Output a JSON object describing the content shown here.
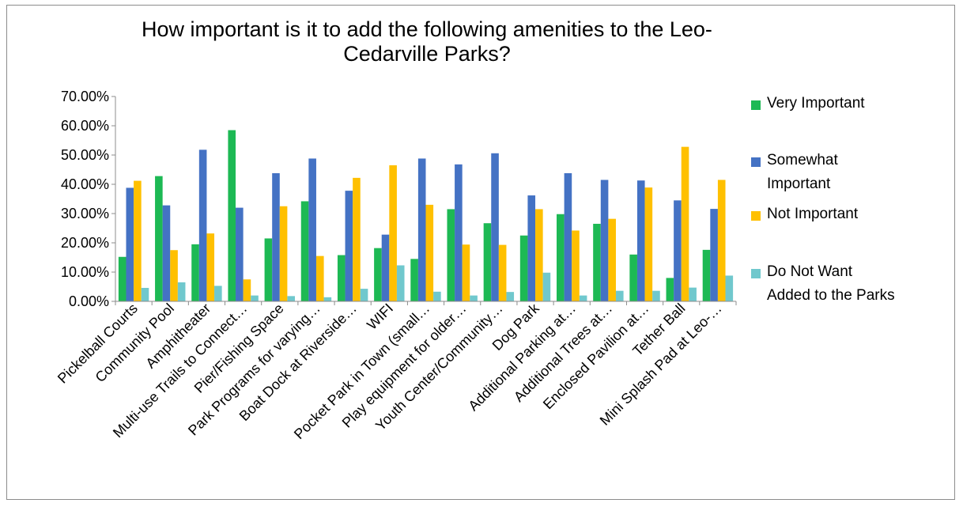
{
  "chart_data": {
    "type": "bar",
    "title": "How important is it to add the following amenities to the Leo-Cedarville Parks?",
    "title_line1": "How important is it to add the following amenities to the Leo-",
    "title_line2": "Cedarville Parks?",
    "xlabel": "",
    "ylabel": "",
    "ylim": [
      0,
      70
    ],
    "y_ticks": [
      "0.00%",
      "10.00%",
      "20.00%",
      "30.00%",
      "40.00%",
      "50.00%",
      "60.00%",
      "70.00%"
    ],
    "grid": false,
    "legend_position": "right",
    "categories": [
      "Pickelball Courts",
      "Community Pool",
      "Amphitheater",
      "Multi-use Trails to Connect…",
      "Pier/Fishing Space",
      "Park Programs for varying…",
      "Boat Dock at Riverside…",
      "WIFI",
      "Pocket Park in Town (small…",
      "Play equipment for older…",
      "Youth Center/Community…",
      "Dog Park",
      "Additional Parking at…",
      "Additional Trees at…",
      "Enclosed Pavilion at…",
      "Tether Ball",
      "Mini Splash Pad at Leo-…"
    ],
    "series": [
      {
        "name": "Very Important",
        "color": "#1db954",
        "values": [
          15.2,
          42.8,
          19.5,
          58.5,
          21.5,
          34.2,
          15.8,
          18.2,
          14.5,
          31.5,
          26.7,
          22.5,
          29.8,
          26.5,
          16.0,
          8.0,
          17.6
        ]
      },
      {
        "name": "Somewhat Important",
        "color": "#4472c4",
        "values": [
          38.8,
          32.8,
          51.8,
          32.0,
          43.8,
          48.8,
          37.8,
          22.8,
          48.8,
          46.8,
          50.6,
          36.2,
          43.8,
          41.5,
          41.3,
          34.5,
          31.6
        ]
      },
      {
        "name": "Not Important",
        "color": "#ffc000",
        "values": [
          41.2,
          17.5,
          23.2,
          7.5,
          32.5,
          15.5,
          42.2,
          46.5,
          33.0,
          19.4,
          19.3,
          31.5,
          24.2,
          28.2,
          38.9,
          52.8,
          41.5
        ]
      },
      {
        "name": "Do Not Want Added to the Parks",
        "color": "#70c8cd",
        "values": [
          4.6,
          6.5,
          5.3,
          2.0,
          1.8,
          1.4,
          4.3,
          12.3,
          3.3,
          2.0,
          3.2,
          9.8,
          2.0,
          3.6,
          3.6,
          4.7,
          8.8
        ]
      }
    ],
    "legend": [
      {
        "line1": "Very Important",
        "line2": ""
      },
      {
        "line1": "Somewhat",
        "line2": "Important"
      },
      {
        "line1": "Not Important",
        "line2": ""
      },
      {
        "line1": "Do Not Want",
        "line2": "Added to the Parks"
      }
    ]
  }
}
